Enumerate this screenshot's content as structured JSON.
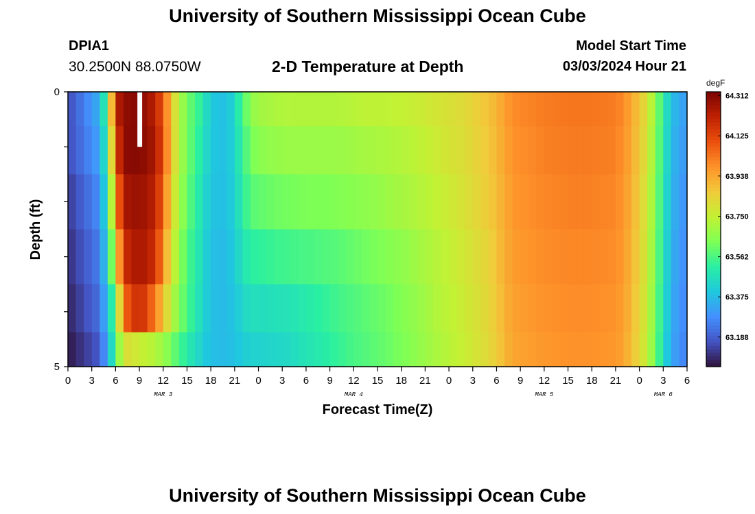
{
  "header": {
    "title": "University of Southern Mississippi Ocean Cube",
    "station_id": "DPIA1",
    "station_coords": "30.2500N  88.0750W",
    "chart_title": "2-D Temperature at Depth",
    "model_start_label": "Model Start Time",
    "model_start_value": "03/03/2024 Hour 21"
  },
  "footer": {
    "title": "University of Southern Mississippi Ocean Cube"
  },
  "chart_data": {
    "type": "heatmap",
    "title": "2-D Temperature at Depth",
    "xlabel": "Forecast Time(Z)",
    "ylabel": "Depth (ft)",
    "colorbar_unit": "degF",
    "colorbar_ticks": [
      "64.312",
      "64.125",
      "63.938",
      "63.750",
      "63.562",
      "63.375",
      "63.188"
    ],
    "vmin": 63.05,
    "vmax": 64.33,
    "colormap": [
      "#30123b",
      "#4454c4",
      "#4490fe",
      "#1fc8de",
      "#29efa2",
      "#7eff55",
      "#c3f133",
      "#f1ca3a",
      "#fe922a",
      "#ea4f0d",
      "#be2102",
      "#7a0403"
    ],
    "xlim_hours": [
      0,
      78
    ],
    "x_ticks": [
      "0",
      "3",
      "6",
      "9",
      "12",
      "15",
      "18",
      "21",
      "0",
      "3",
      "6",
      "9",
      "12",
      "15",
      "18",
      "21",
      "0",
      "3",
      "6",
      "9",
      "12",
      "15",
      "18",
      "21",
      "0",
      "3",
      "6"
    ],
    "date_labels": [
      {
        "label": "MAR 3",
        "hour": 12
      },
      {
        "label": "MAR 4",
        "hour": 36
      },
      {
        "label": "MAR 5",
        "hour": 60
      },
      {
        "label": "MAR 6",
        "hour": 75
      }
    ],
    "y_ticks": [
      "0",
      "5"
    ],
    "ylim_ft": [
      0,
      5
    ],
    "depth_layers_ft": [
      0.25,
      1.0,
      2.0,
      3.0,
      4.0,
      4.75
    ],
    "keyframes_hours": [
      0,
      4,
      5,
      6,
      7,
      9,
      11,
      12,
      13,
      14,
      15,
      17,
      18,
      20,
      21,
      23,
      24,
      26,
      28,
      30,
      32,
      34,
      36,
      38,
      40,
      42,
      44,
      46,
      48,
      50,
      51,
      52,
      53,
      54,
      55,
      56,
      60,
      63,
      66,
      69,
      70,
      71,
      72,
      73,
      74,
      75,
      76,
      78
    ],
    "series": [
      {
        "depth_ft": 0.25,
        "values": [
          63.15,
          63.35,
          63.6,
          64.2,
          64.29,
          64.31,
          64.22,
          64.08,
          63.88,
          63.72,
          63.62,
          63.5,
          63.4,
          63.38,
          63.45,
          63.66,
          63.69,
          63.71,
          63.72,
          63.72,
          63.72,
          63.72,
          63.73,
          63.74,
          63.74,
          63.75,
          63.76,
          63.78,
          63.8,
          63.82,
          63.84,
          63.86,
          63.88,
          63.91,
          63.95,
          63.99,
          64.02,
          64.03,
          64.03,
          64.02,
          63.99,
          63.94,
          63.87,
          63.8,
          63.66,
          63.52,
          63.38,
          63.3
        ]
      },
      {
        "depth_ft": 1.0,
        "values": [
          63.15,
          63.32,
          63.55,
          64.1,
          64.3,
          64.31,
          64.25,
          64.1,
          63.88,
          63.72,
          63.62,
          63.48,
          63.4,
          63.38,
          63.44,
          63.62,
          63.65,
          63.67,
          63.68,
          63.68,
          63.68,
          63.68,
          63.69,
          63.7,
          63.71,
          63.72,
          63.74,
          63.76,
          63.79,
          63.81,
          63.83,
          63.85,
          63.87,
          63.9,
          63.94,
          63.98,
          64.01,
          64.02,
          64.02,
          64.01,
          63.98,
          63.93,
          63.86,
          63.79,
          63.65,
          63.51,
          63.37,
          63.29
        ]
      },
      {
        "depth_ft": 2.0,
        "values": [
          63.12,
          63.28,
          63.5,
          63.95,
          64.25,
          64.28,
          64.22,
          64.05,
          63.84,
          63.7,
          63.6,
          63.46,
          63.39,
          63.38,
          63.43,
          63.58,
          63.59,
          63.61,
          63.62,
          63.63,
          63.63,
          63.64,
          63.65,
          63.66,
          63.68,
          63.7,
          63.72,
          63.74,
          63.77,
          63.8,
          63.82,
          63.84,
          63.86,
          63.89,
          63.93,
          63.97,
          64.0,
          64.01,
          64.01,
          64.0,
          63.97,
          63.92,
          63.85,
          63.78,
          63.64,
          63.5,
          63.36,
          63.28
        ]
      },
      {
        "depth_ft": 3.0,
        "values": [
          63.1,
          63.25,
          63.45,
          63.78,
          64.18,
          64.26,
          64.18,
          63.98,
          63.8,
          63.67,
          63.57,
          63.45,
          63.38,
          63.37,
          63.42,
          63.52,
          63.52,
          63.54,
          63.55,
          63.56,
          63.57,
          63.58,
          63.6,
          63.62,
          63.64,
          63.66,
          63.69,
          63.72,
          63.75,
          63.78,
          63.8,
          63.82,
          63.84,
          63.88,
          63.92,
          63.96,
          63.99,
          64.0,
          64.0,
          63.99,
          63.96,
          63.91,
          63.84,
          63.77,
          63.63,
          63.49,
          63.35,
          63.27
        ]
      },
      {
        "depth_ft": 4.0,
        "values": [
          63.08,
          63.22,
          63.4,
          63.6,
          64.05,
          64.2,
          64.02,
          63.88,
          63.74,
          63.64,
          63.56,
          63.44,
          63.38,
          63.37,
          63.4,
          63.47,
          63.46,
          63.47,
          63.48,
          63.5,
          63.52,
          63.55,
          63.57,
          63.59,
          63.61,
          63.64,
          63.67,
          63.71,
          63.74,
          63.77,
          63.79,
          63.81,
          63.83,
          63.87,
          63.91,
          63.95,
          63.98,
          63.99,
          63.99,
          63.98,
          63.95,
          63.9,
          63.83,
          63.76,
          63.62,
          63.48,
          63.34,
          63.26
        ]
      },
      {
        "depth_ft": 4.75,
        "values": [
          63.06,
          63.18,
          63.35,
          63.55,
          63.82,
          63.76,
          63.72,
          63.68,
          63.62,
          63.56,
          63.5,
          63.42,
          63.38,
          63.37,
          63.39,
          63.43,
          63.43,
          63.44,
          63.45,
          63.48,
          63.5,
          63.53,
          63.56,
          63.58,
          63.6,
          63.63,
          63.66,
          63.7,
          63.73,
          63.76,
          63.78,
          63.8,
          63.82,
          63.86,
          63.9,
          63.94,
          63.97,
          63.98,
          63.98,
          63.97,
          63.94,
          63.89,
          63.82,
          63.75,
          63.61,
          63.47,
          63.33,
          63.25
        ]
      }
    ],
    "gap_hours": [
      8.75,
      9.0
    ],
    "gap_depth_ft": [
      0,
      1.0
    ]
  }
}
